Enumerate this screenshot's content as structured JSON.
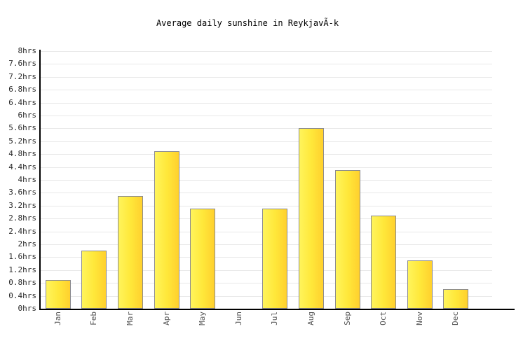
{
  "chart_data": {
    "type": "bar",
    "title": "Average daily sunshine in ReykjavÃ-k",
    "categories": [
      "Jan",
      "Feb",
      "Mar",
      "Apr",
      "May",
      "Jun",
      "Jul",
      "Aug",
      "Sep",
      "Oct",
      "Nov",
      "Dec"
    ],
    "values": [
      0.9,
      1.8,
      3.5,
      4.9,
      3.1,
      0,
      3.1,
      5.6,
      4.3,
      2.9,
      1.5,
      0.6
    ],
    "unit": "hrs",
    "xlabel": "",
    "ylabel": "",
    "ylim": [
      0,
      8
    ],
    "ytick_step": 0.4,
    "y_tick_labels": [
      "0hrs",
      "0.4hrs",
      "0.8hrs",
      "1.2hrs",
      "1.6hrs",
      "2hrs",
      "2.4hrs",
      "2.8hrs",
      "3.2hrs",
      "3.6hrs",
      "4hrs",
      "4.4hrs",
      "4.8hrs",
      "5.2hrs",
      "5.6hrs",
      "6hrs",
      "6.4hrs",
      "6.8hrs",
      "7.2hrs",
      "7.6hrs",
      "8hrs"
    ],
    "grid": "horizontal-only",
    "legend": "none",
    "x_label_rotation": -90,
    "colors": {
      "bar_fill_left": "#FFF45C",
      "bar_fill_right": "#FFD02E",
      "bar_border": "#8A8A8F",
      "gridline": "#E8E8E8",
      "axis_line": "#000000",
      "title_text": "#000000",
      "ytick_text": "#2A2A2A",
      "month_text": "#595959",
      "background": "#FFFFFF"
    }
  }
}
